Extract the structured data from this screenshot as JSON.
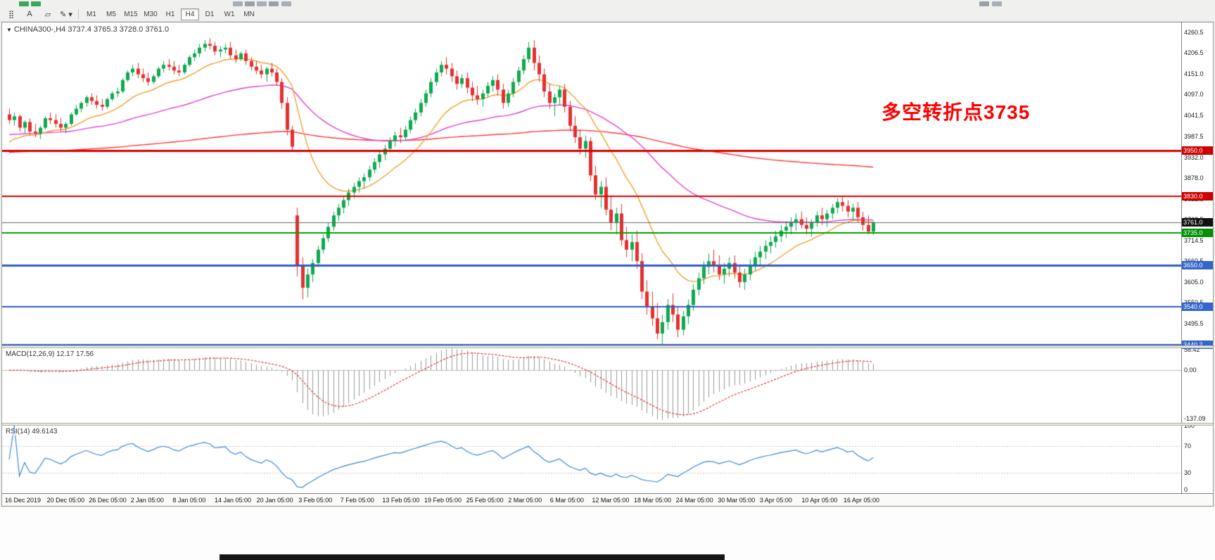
{
  "window": {
    "toolbar": {
      "tools": [
        {
          "name": "grid-dots",
          "glyph": "⣿"
        },
        {
          "name": "text-label",
          "glyph": "A"
        },
        {
          "name": "shapes",
          "glyph": "▱"
        },
        {
          "name": "drawing-tools-dropdown",
          "glyph": "✎ ▾"
        }
      ],
      "timeframes": [
        "M1",
        "M5",
        "M15",
        "M30",
        "H1",
        "H4",
        "D1",
        "W1",
        "MN"
      ],
      "active_timeframe": "H4"
    },
    "chart": {
      "collapse_glyph": "▼",
      "title": "CHINA300-,H4 3737.4 3765.3 3728.0 3761.0",
      "annotation": {
        "text": "多空转折点3735",
        "color": "#ff0000"
      },
      "macd_label": "MACD(12,26,9) 12.17 17.56",
      "rsi_label": "RSI(14) 49.6143"
    }
  },
  "chart_data": {
    "type": "candlestick",
    "symbol": "CHINA300-",
    "timeframe": "H4",
    "ohlc_current": {
      "open": 3737.4,
      "high": 3765.3,
      "low": 3728.0,
      "close": 3761.0
    },
    "price_axis_ticks": [
      "4260.5",
      "4206.5",
      "4151.0",
      "4097.0",
      "4041.5",
      "3987.5",
      "3932.0",
      "3878.0",
      "3822.5",
      "3768.5",
      "3714.5",
      "3660.5",
      "3605.0",
      "3550.5",
      "3495.5",
      "3441.0"
    ],
    "time_axis_ticks": [
      "16 Dec 2019",
      "20 Dec 05:00",
      "26 Dec 05:00",
      "2 Jan 05:00",
      "8 Jan 05:00",
      "14 Jan 05:00",
      "20 Jan 05:00",
      "3 Feb 05:00",
      "7 Feb 05:00",
      "13 Feb 05:00",
      "19 Feb 05:00",
      "25 Feb 05:00",
      "2 Mar 05:00",
      "6 Mar 05:00",
      "12 Mar 05:00",
      "18 Mar 05:00",
      "24 Mar 05:00",
      "30 Mar 05:00",
      "3 Apr 05:00",
      "10 Apr 05:00",
      "16 Apr 05:00"
    ],
    "horizontal_lines": [
      {
        "price": 3950.0,
        "color": "#dd0000",
        "width": 3,
        "badge": "3950.0",
        "badge_color": "#cc0000"
      },
      {
        "price": 3830.0,
        "color": "#dd0000",
        "width": 2,
        "badge": "3830.0",
        "badge_color": "#cc0000"
      },
      {
        "price": 3761.0,
        "color": "#666666",
        "width": 1,
        "badge": "3761.0",
        "badge_color": "#111111"
      },
      {
        "price": 3735.0,
        "color": "#00a000",
        "width": 2,
        "badge": "3735.0",
        "badge_color": "#009000"
      },
      {
        "price": 3650.0,
        "color": "#2f5fc0",
        "width": 3,
        "badge": "3650.0",
        "badge_color": "#3366cc"
      },
      {
        "price": 3540.0,
        "color": "#2f5fc0",
        "width": 2,
        "badge": "3540.0",
        "badge_color": "#3366cc"
      },
      {
        "price": 3440.2,
        "color": "#2f5fc0",
        "width": 2,
        "badge": "3440.2",
        "badge_color": "#3366cc"
      }
    ],
    "moving_averages": [
      {
        "period": 16,
        "color": "#f0a030",
        "seed": 3965
      },
      {
        "period": 60,
        "color": "#e040d0",
        "seed": 3990
      },
      {
        "period": 300,
        "color": "#ff3535",
        "seed": 3945
      }
    ],
    "macd": {
      "params": "12,26,9",
      "axis": [
        "58.42",
        "0.00",
        "-137.09"
      ],
      "axis_values": [
        58.42,
        0,
        -137.09
      ]
    },
    "rsi": {
      "period": 14,
      "value": 49.6143,
      "axis": [
        "100",
        "70",
        "30",
        "0"
      ],
      "axis_values": [
        100,
        70,
        30,
        0
      ],
      "levels": [
        70,
        30
      ]
    },
    "colors": {
      "up": "#0faa4f",
      "down": "#e53030",
      "macd_hist": "#999999",
      "macd_signal": "#e03131",
      "rsi_line": "#3a87d8"
    },
    "candles": [
      [
        4045,
        4060,
        4020,
        4030
      ],
      [
        4030,
        4050,
        4015,
        4040
      ],
      [
        4040,
        4045,
        4000,
        4010
      ],
      [
        4010,
        4030,
        3995,
        4025
      ],
      [
        4025,
        4035,
        3990,
        4000
      ],
      [
        4000,
        4020,
        3985,
        3995
      ],
      [
        3995,
        4015,
        3980,
        4010
      ],
      [
        4010,
        4040,
        4005,
        4035
      ],
      [
        4035,
        4050,
        4020,
        4030
      ],
      [
        4030,
        4045,
        4010,
        4020
      ],
      [
        4020,
        4035,
        4000,
        4010
      ],
      [
        4010,
        4025,
        3995,
        4020
      ],
      [
        4020,
        4050,
        4015,
        4045
      ],
      [
        4045,
        4070,
        4040,
        4060
      ],
      [
        4060,
        4080,
        4050,
        4075
      ],
      [
        4075,
        4095,
        4065,
        4090
      ],
      [
        4090,
        4100,
        4070,
        4080
      ],
      [
        4080,
        4095,
        4060,
        4070
      ],
      [
        4070,
        4085,
        4055,
        4065
      ],
      [
        4065,
        4090,
        4060,
        4085
      ],
      [
        4085,
        4105,
        4080,
        4100
      ],
      [
        4100,
        4115,
        4090,
        4105
      ],
      [
        4105,
        4140,
        4100,
        4135
      ],
      [
        4135,
        4160,
        4130,
        4155
      ],
      [
        4155,
        4175,
        4145,
        4165
      ],
      [
        4165,
        4180,
        4140,
        4150
      ],
      [
        4150,
        4165,
        4130,
        4140
      ],
      [
        4140,
        4155,
        4120,
        4130
      ],
      [
        4130,
        4150,
        4125,
        4145
      ],
      [
        4145,
        4170,
        4140,
        4165
      ],
      [
        4165,
        4185,
        4155,
        4175
      ],
      [
        4175,
        4190,
        4160,
        4170
      ],
      [
        4170,
        4185,
        4150,
        4160
      ],
      [
        4160,
        4175,
        4145,
        4155
      ],
      [
        4155,
        4180,
        4150,
        4175
      ],
      [
        4175,
        4200,
        4170,
        4195
      ],
      [
        4195,
        4215,
        4185,
        4205
      ],
      [
        4205,
        4230,
        4195,
        4220
      ],
      [
        4220,
        4240,
        4210,
        4230
      ],
      [
        4230,
        4245,
        4215,
        4225
      ],
      [
        4225,
        4235,
        4200,
        4210
      ],
      [
        4210,
        4225,
        4195,
        4215
      ],
      [
        4215,
        4230,
        4205,
        4220
      ],
      [
        4220,
        4235,
        4190,
        4200
      ],
      [
        4200,
        4215,
        4180,
        4190
      ],
      [
        4190,
        4210,
        4185,
        4205
      ],
      [
        4205,
        4215,
        4175,
        4185
      ],
      [
        4185,
        4195,
        4160,
        4170
      ],
      [
        4170,
        4185,
        4150,
        4160
      ],
      [
        4160,
        4175,
        4140,
        4150
      ],
      [
        4150,
        4170,
        4130,
        4165
      ],
      [
        4165,
        4180,
        4145,
        4155
      ],
      [
        4155,
        4165,
        4120,
        4130
      ],
      [
        4130,
        4140,
        4060,
        4075
      ],
      [
        4075,
        4090,
        3990,
        4005
      ],
      [
        4005,
        4015,
        3950,
        3960
      ],
      [
        3780,
        3800,
        3620,
        3650
      ],
      [
        3650,
        3670,
        3560,
        3590
      ],
      [
        3590,
        3640,
        3565,
        3625
      ],
      [
        3625,
        3665,
        3605,
        3655
      ],
      [
        3655,
        3700,
        3645,
        3690
      ],
      [
        3690,
        3730,
        3680,
        3720
      ],
      [
        3720,
        3760,
        3710,
        3750
      ],
      [
        3750,
        3790,
        3740,
        3780
      ],
      [
        3780,
        3810,
        3765,
        3800
      ],
      [
        3800,
        3830,
        3785,
        3820
      ],
      [
        3820,
        3850,
        3805,
        3840
      ],
      [
        3840,
        3865,
        3825,
        3855
      ],
      [
        3855,
        3880,
        3840,
        3870
      ],
      [
        3870,
        3890,
        3850,
        3880
      ],
      [
        3880,
        3910,
        3870,
        3900
      ],
      [
        3900,
        3930,
        3890,
        3920
      ],
      [
        3920,
        3950,
        3905,
        3940
      ],
      [
        3940,
        3965,
        3925,
        3955
      ],
      [
        3955,
        3985,
        3945,
        3975
      ],
      [
        3975,
        4000,
        3960,
        3990
      ],
      [
        3990,
        4010,
        3970,
        3985
      ],
      [
        3985,
        4015,
        3975,
        4005
      ],
      [
        4005,
        4040,
        3995,
        4030
      ],
      [
        4030,
        4060,
        4020,
        4050
      ],
      [
        4050,
        4085,
        4040,
        4075
      ],
      [
        4075,
        4110,
        4065,
        4100
      ],
      [
        4100,
        4140,
        4090,
        4130
      ],
      [
        4130,
        4165,
        4120,
        4155
      ],
      [
        4155,
        4185,
        4145,
        4175
      ],
      [
        4175,
        4195,
        4150,
        4165
      ],
      [
        4165,
        4180,
        4130,
        4145
      ],
      [
        4145,
        4160,
        4110,
        4125
      ],
      [
        4125,
        4150,
        4115,
        4140
      ],
      [
        4140,
        4155,
        4100,
        4115
      ],
      [
        4115,
        4130,
        4080,
        4095
      ],
      [
        4095,
        4120,
        4070,
        4085
      ],
      [
        4085,
        4110,
        4065,
        4100
      ],
      [
        4100,
        4130,
        4090,
        4120
      ],
      [
        4120,
        4145,
        4105,
        4135
      ],
      [
        4135,
        4150,
        4095,
        4110
      ],
      [
        4110,
        4125,
        4060,
        4075
      ],
      [
        4075,
        4110,
        4065,
        4100
      ],
      [
        4100,
        4140,
        4090,
        4130
      ],
      [
        4130,
        4170,
        4120,
        4160
      ],
      [
        4160,
        4200,
        4150,
        4190
      ],
      [
        4190,
        4235,
        4180,
        4220
      ],
      [
        4220,
        4240,
        4160,
        4180
      ],
      [
        4180,
        4200,
        4130,
        4150
      ],
      [
        4150,
        4165,
        4090,
        4105
      ],
      [
        4105,
        4125,
        4060,
        4075
      ],
      [
        4075,
        4100,
        4040,
        4090
      ],
      [
        4090,
        4120,
        4070,
        4110
      ],
      [
        4110,
        4125,
        4050,
        4065
      ],
      [
        4065,
        4080,
        4000,
        4015
      ],
      [
        4015,
        4040,
        3970,
        3985
      ],
      [
        3985,
        4005,
        3940,
        3955
      ],
      [
        3955,
        3990,
        3930,
        3975
      ],
      [
        3975,
        3985,
        3870,
        3885
      ],
      [
        3885,
        3910,
        3820,
        3835
      ],
      [
        3835,
        3870,
        3800,
        3855
      ],
      [
        3855,
        3880,
        3780,
        3795
      ],
      [
        3795,
        3830,
        3740,
        3760
      ],
      [
        3760,
        3800,
        3730,
        3785
      ],
      [
        3785,
        3810,
        3700,
        3715
      ],
      [
        3715,
        3750,
        3670,
        3690
      ],
      [
        3690,
        3730,
        3660,
        3710
      ],
      [
        3710,
        3740,
        3640,
        3660
      ],
      [
        3660,
        3680,
        3560,
        3580
      ],
      [
        3580,
        3610,
        3520,
        3540
      ],
      [
        3540,
        3580,
        3490,
        3510
      ],
      [
        3510,
        3550,
        3455,
        3470
      ],
      [
        3470,
        3520,
        3440,
        3500
      ],
      [
        3500,
        3560,
        3480,
        3545
      ],
      [
        3545,
        3575,
        3500,
        3520
      ],
      [
        3520,
        3540,
        3460,
        3480
      ],
      [
        3480,
        3530,
        3465,
        3515
      ],
      [
        3515,
        3560,
        3495,
        3545
      ],
      [
        3545,
        3600,
        3530,
        3585
      ],
      [
        3585,
        3630,
        3570,
        3615
      ],
      [
        3615,
        3660,
        3600,
        3645
      ],
      [
        3645,
        3680,
        3625,
        3660
      ],
      [
        3660,
        3690,
        3630,
        3650
      ],
      [
        3650,
        3675,
        3610,
        3625
      ],
      [
        3625,
        3655,
        3600,
        3640
      ],
      [
        3640,
        3670,
        3620,
        3655
      ],
      [
        3655,
        3675,
        3615,
        3630
      ],
      [
        3630,
        3650,
        3590,
        3605
      ],
      [
        3605,
        3640,
        3585,
        3625
      ],
      [
        3625,
        3665,
        3610,
        3650
      ],
      [
        3650,
        3685,
        3635,
        3670
      ],
      [
        3670,
        3700,
        3650,
        3685
      ],
      [
        3685,
        3715,
        3665,
        3700
      ],
      [
        3700,
        3725,
        3680,
        3710
      ],
      [
        3710,
        3740,
        3695,
        3725
      ],
      [
        3725,
        3755,
        3710,
        3740
      ],
      [
        3740,
        3765,
        3720,
        3750
      ],
      [
        3750,
        3775,
        3730,
        3760
      ],
      [
        3760,
        3785,
        3740,
        3770
      ],
      [
        3770,
        3790,
        3745,
        3755
      ],
      [
        3755,
        3775,
        3730,
        3745
      ],
      [
        3745,
        3770,
        3725,
        3760
      ],
      [
        3760,
        3790,
        3750,
        3780
      ],
      [
        3780,
        3800,
        3755,
        3770
      ],
      [
        3770,
        3795,
        3750,
        3785
      ],
      [
        3785,
        3810,
        3770,
        3800
      ],
      [
        3800,
        3825,
        3785,
        3815
      ],
      [
        3815,
        3830,
        3790,
        3805
      ],
      [
        3805,
        3820,
        3775,
        3790
      ],
      [
        3790,
        3810,
        3765,
        3800
      ],
      [
        3800,
        3815,
        3760,
        3775
      ],
      [
        3775,
        3790,
        3740,
        3755
      ],
      [
        3755,
        3780,
        3730,
        3737.4
      ],
      [
        3737.4,
        3765.3,
        3728,
        3761
      ]
    ]
  }
}
